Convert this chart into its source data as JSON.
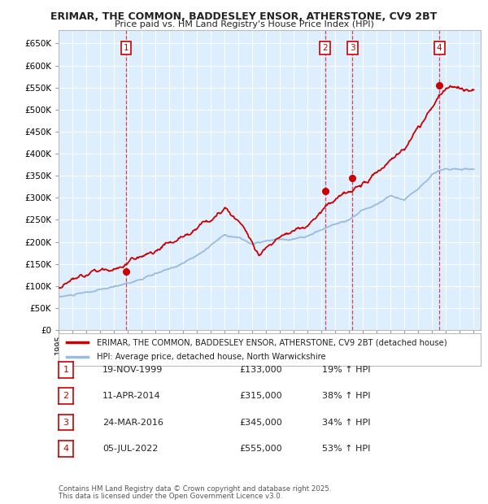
{
  "title_line1": "ERIMAR, THE COMMON, BADDESLEY ENSOR, ATHERSTONE, CV9 2BT",
  "title_line2": "Price paid vs. HM Land Registry's House Price Index (HPI)",
  "ylim": [
    0,
    680000
  ],
  "yticks": [
    0,
    50000,
    100000,
    150000,
    200000,
    250000,
    300000,
    350000,
    400000,
    450000,
    500000,
    550000,
    600000,
    650000
  ],
  "bg_color": "#ddeeff",
  "grid_color": "#ffffff",
  "sale_color": "#cc0000",
  "hpi_color": "#99bbdd",
  "legend_sale_label": "ERIMAR, THE COMMON, BADDESLEY ENSOR, ATHERSTONE, CV9 2BT (detached house)",
  "legend_hpi_label": "HPI: Average price, detached house, North Warwickshire",
  "transactions": [
    {
      "num": 1,
      "date": "19-NOV-1999",
      "price": 133000,
      "pct": "19%",
      "dir": "↑",
      "year": 1999.88
    },
    {
      "num": 2,
      "date": "11-APR-2014",
      "price": 315000,
      "pct": "38%",
      "dir": "↑",
      "year": 2014.27
    },
    {
      "num": 3,
      "date": "24-MAR-2016",
      "price": 345000,
      "pct": "34%",
      "dir": "↑",
      "year": 2016.22
    },
    {
      "num": 4,
      "date": "05-JUL-2022",
      "price": 555000,
      "pct": "53%",
      "dir": "↑",
      "year": 2022.51
    }
  ],
  "footer_line1": "Contains HM Land Registry data © Crown copyright and database right 2025.",
  "footer_line2": "This data is licensed under the Open Government Licence v3.0.",
  "xmin": 1995,
  "xmax": 2025.5
}
